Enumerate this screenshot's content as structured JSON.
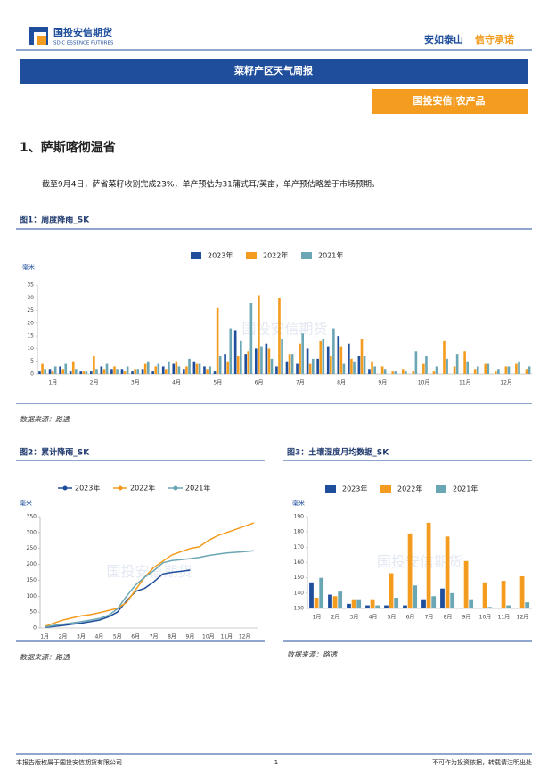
{
  "header": {
    "company": "国投安信期货",
    "company_en": "SDIC ESSENCE FUTURES",
    "slogan_a": "安如泰山",
    "slogan_b": "信守承诺"
  },
  "banner": "菜籽产区天气周报",
  "tag": "国投安信|农产品",
  "section": "1、萨斯喀彻温省",
  "paragraph": "截至9月4日，萨省菜籽收割完成23%，单产预估为31蒲式耳/英亩，单产预估略差于市场预期。",
  "watermark": "国投安信期货",
  "sources": [
    "数据来源：路透",
    "数据来源：路透",
    "数据来源：路透"
  ],
  "footer": {
    "left": "本报告版权属于国投安信期货有限公司",
    "page": "1",
    "right": "不可作为投资依据，转载请注明出处"
  },
  "chart_data": [
    {
      "type": "bar",
      "title": "图1：周度降雨_SK",
      "ylabel": "毫米",
      "categories": [
        null,
        "1月",
        null,
        null,
        null,
        "2月",
        null,
        null,
        null,
        "3月",
        null,
        null,
        null,
        "4月",
        null,
        null,
        null,
        "5月",
        null,
        null,
        null,
        "6月",
        null,
        null,
        null,
        "7月",
        null,
        null,
        null,
        "8月",
        null,
        null,
        null,
        "9月",
        null,
        null,
        null,
        "10月",
        null,
        null,
        null,
        "11月",
        null,
        null,
        null,
        "12月",
        null,
        null
      ],
      "series": [
        {
          "name": "2023年",
          "color": "#1f4e9c",
          "values": [
            1,
            2,
            3,
            1,
            1,
            1,
            3,
            2,
            2,
            1,
            2,
            1,
            3,
            4,
            2,
            5,
            3,
            1,
            8,
            17,
            8,
            10,
            12,
            3,
            5,
            4,
            10,
            6,
            11,
            15,
            12,
            7,
            2,
            null,
            null,
            null,
            null,
            null,
            null,
            null,
            null,
            null,
            null,
            null,
            null,
            null,
            null,
            null
          ]
        },
        {
          "name": "2022年",
          "color": "#f39c1f",
          "values": [
            4,
            1,
            2,
            5,
            1,
            7,
            2,
            3,
            1,
            2,
            4,
            3,
            2,
            5,
            3,
            4,
            2,
            26,
            5,
            7,
            9,
            31,
            10,
            30,
            8,
            12,
            4,
            13,
            7,
            11,
            6,
            14,
            5,
            3,
            1,
            2,
            1,
            4,
            1,
            13,
            3,
            9,
            2,
            4,
            1,
            3,
            4,
            2
          ]
        },
        {
          "name": "2021年",
          "color": "#6aa6b4",
          "values": [
            2,
            3,
            4,
            2,
            1,
            2,
            4,
            2,
            3,
            2,
            5,
            4,
            5,
            3,
            6,
            4,
            3,
            7,
            18,
            13,
            28,
            11,
            6,
            14,
            8,
            16,
            6,
            14,
            18,
            4,
            5,
            7,
            3,
            2,
            1,
            1,
            9,
            7,
            3,
            6,
            8,
            5,
            3,
            4,
            2,
            3,
            5,
            3
          ]
        }
      ],
      "ylim": [
        0,
        35
      ],
      "yticks": [
        0,
        5,
        10,
        15,
        20,
        25,
        30,
        35
      ],
      "grid": false
    },
    {
      "type": "line",
      "title": "图2：累计降雨_SK",
      "ylabel": "毫米",
      "categories": [
        "1月",
        null,
        "2月",
        null,
        "3月",
        null,
        "4月",
        null,
        "5月",
        null,
        "6月",
        null,
        "7月",
        null,
        "8月",
        null,
        "9月",
        null,
        "10月",
        null,
        "11月",
        null,
        "12月",
        null
      ],
      "series": [
        {
          "name": "2023年",
          "color": "#1f4e9c",
          "values": [
            2,
            5,
            8,
            12,
            15,
            20,
            25,
            35,
            50,
            85,
            115,
            125,
            145,
            170,
            175,
            178,
            182,
            null,
            null,
            null,
            null,
            null,
            null,
            null
          ]
        },
        {
          "name": "2022年",
          "color": "#f39c1f",
          "values": [
            5,
            15,
            25,
            32,
            38,
            42,
            48,
            55,
            62,
            80,
            120,
            160,
            190,
            210,
            230,
            240,
            250,
            255,
            275,
            290,
            300,
            310,
            320,
            330
          ]
        },
        {
          "name": "2021年",
          "color": "#6aa6b4",
          "values": [
            3,
            8,
            12,
            16,
            20,
            25,
            30,
            40,
            60,
            100,
            135,
            160,
            180,
            205,
            212,
            215,
            218,
            222,
            228,
            232,
            236,
            238,
            240,
            243
          ]
        }
      ],
      "ylim": [
        0,
        350
      ],
      "yticks": [
        0,
        50,
        100,
        150,
        200,
        250,
        300,
        350
      ],
      "grid": false
    },
    {
      "type": "bar",
      "title": "图3：土壤湿度月均数据_SK",
      "ylabel": "毫米",
      "categories": [
        "1月",
        "2月",
        "3月",
        "4月",
        "5月",
        "6月",
        "7月",
        "8月",
        "9月",
        "10月",
        "11月",
        "12月"
      ],
      "series": [
        {
          "name": "2023年",
          "color": "#1f4e9c",
          "values": [
            147,
            139,
            133,
            132,
            132,
            132,
            136,
            143,
            null,
            null,
            null,
            null
          ]
        },
        {
          "name": "2022年",
          "color": "#f39c1f",
          "values": [
            137,
            138,
            136,
            136,
            153,
            179,
            186,
            177,
            161,
            147,
            148,
            151
          ]
        },
        {
          "name": "2021年",
          "color": "#6aa6b4",
          "values": [
            150,
            141,
            136,
            132,
            137,
            145,
            138,
            140,
            136,
            131,
            132,
            134
          ]
        }
      ],
      "ylim": [
        130,
        190
      ],
      "yticks": [
        130,
        140,
        150,
        160,
        170,
        180,
        190
      ],
      "grid": false
    }
  ]
}
